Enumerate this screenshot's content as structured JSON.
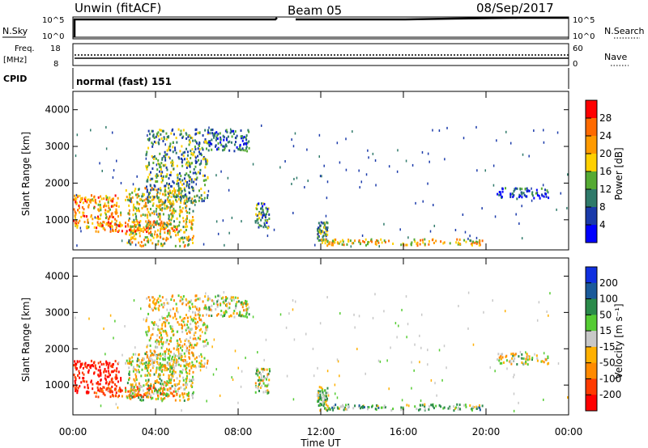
{
  "header": {
    "station": "Unwin (fitACF)",
    "beam": "Beam 05",
    "date": "08/Sep/2017"
  },
  "panels": {
    "nsky": {
      "label": "N.Sky",
      "right_label": "N.Search",
      "ticks_left": [
        "10^5",
        "10^0"
      ],
      "ticks_right": [
        "10^5",
        "10^0"
      ]
    },
    "freq": {
      "label_top": "Freq.",
      "label_unit": "[MHz]",
      "right_label": "Nave",
      "ticks_left": [
        "18",
        "8"
      ],
      "ticks_right": [
        "60",
        "0"
      ]
    },
    "cpid": {
      "label": "CPID",
      "value": "normal (fast) 151"
    }
  },
  "axes": {
    "ylabel": "Slant Range [km]",
    "yticks": [
      "4000",
      "3000",
      "2000",
      "1000"
    ],
    "xlabel": "Time UT",
    "xticks": [
      "00:00",
      "04:00",
      "08:00",
      "12:00",
      "16:00",
      "20:00",
      "00:00"
    ]
  },
  "colorbars": {
    "power": {
      "label": "Power [dB]",
      "ticks": [
        "28",
        "24",
        "20",
        "16",
        "12",
        "8",
        "4"
      ],
      "colors": [
        "#ff0000",
        "#ff6a00",
        "#ff9a00",
        "#ffd000",
        "#55aa33",
        "#2f7a6a",
        "#1a3aaa",
        "#0000ff"
      ]
    },
    "velocity": {
      "label": "Velocity [m s⁻¹]",
      "ticks": [
        "200",
        "100",
        "50",
        "15",
        "-15",
        "-50",
        "-100",
        "-200"
      ],
      "colors": [
        "#1030e0",
        "#1a5a9a",
        "#2a8a4a",
        "#55cc33",
        "#c8c8c8",
        "#ffb000",
        "#ff8a00",
        "#ff3a00",
        "#ff0000"
      ]
    }
  },
  "chart_data": [
    {
      "type": "heatmap",
      "title": "Power",
      "xlabel": "Time UT",
      "ylabel": "Slant Range [km]",
      "xlim_hours": [
        0,
        24
      ],
      "ylim_km": [
        180,
        4500
      ],
      "color_scale": "Power [dB]",
      "regions": [
        {
          "t": [
            0.0,
            2.3
          ],
          "r": [
            800,
            1700
          ],
          "value": 22
        },
        {
          "t": [
            1.0,
            5.0
          ],
          "r": [
            700,
            1000
          ],
          "value": 25
        },
        {
          "t": [
            2.5,
            5.8
          ],
          "r": [
            300,
            1900
          ],
          "value": 18
        },
        {
          "t": [
            3.5,
            6.5
          ],
          "r": [
            1500,
            3500
          ],
          "value": 12
        },
        {
          "t": [
            6.5,
            8.5
          ],
          "r": [
            2900,
            3500
          ],
          "value": 8
        },
        {
          "t": [
            8.8,
            9.5
          ],
          "r": [
            800,
            1500
          ],
          "value": 10
        },
        {
          "t": [
            11.8,
            12.3
          ],
          "r": [
            450,
            1000
          ],
          "value": 12
        },
        {
          "t": [
            12.0,
            19.8
          ],
          "r": [
            330,
            500
          ],
          "value": 20
        },
        {
          "t": [
            20.5,
            23.0
          ],
          "r": [
            1600,
            1900
          ],
          "value": 6
        }
      ]
    },
    {
      "type": "heatmap",
      "title": "Velocity",
      "xlabel": "Time UT",
      "ylabel": "Slant Range [km]",
      "xlim_hours": [
        0,
        24
      ],
      "ylim_km": [
        180,
        4500
      ],
      "color_scale": "Velocity [m s⁻¹]",
      "regions": [
        {
          "t": [
            0.0,
            2.3
          ],
          "r": [
            800,
            1700
          ],
          "value": -200
        },
        {
          "t": [
            1.0,
            5.0
          ],
          "r": [
            700,
            1000
          ],
          "value": -120
        },
        {
          "t": [
            2.5,
            5.8
          ],
          "r": [
            600,
            1900
          ],
          "value": 0
        },
        {
          "t": [
            3.5,
            6.5
          ],
          "r": [
            1500,
            3500
          ],
          "value": -20
        },
        {
          "t": [
            6.5,
            8.5
          ],
          "r": [
            2900,
            3500
          ],
          "value": 0
        },
        {
          "t": [
            8.8,
            9.5
          ],
          "r": [
            800,
            1500
          ],
          "value": 0
        },
        {
          "t": [
            11.8,
            12.3
          ],
          "r": [
            450,
            1000
          ],
          "value": 30
        },
        {
          "t": [
            12.0,
            19.8
          ],
          "r": [
            330,
            500
          ],
          "value": 40
        },
        {
          "t": [
            20.5,
            23.0
          ],
          "r": [
            1600,
            1900
          ],
          "value": 0
        }
      ]
    }
  ]
}
